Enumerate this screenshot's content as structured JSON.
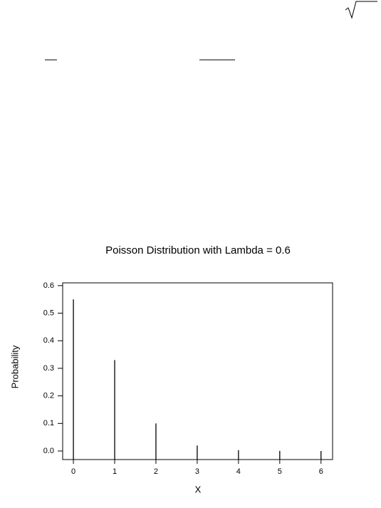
{
  "chart_data": {
    "type": "bar",
    "title": "Poisson Distribution with Lambda = 0.6",
    "x_label": "X",
    "y_label": "Probability",
    "x": [
      0,
      1,
      2,
      3,
      4,
      5,
      6
    ],
    "values": [
      0.55,
      0.33,
      0.1,
      0.02,
      0.003,
      0.0004,
      4e-05
    ],
    "color": "#000000",
    "xlim": [
      -0.26,
      6.28
    ],
    "xticks": [
      0,
      1,
      2,
      3,
      4,
      5,
      6
    ],
    "ylim": [
      -0.031,
      0.61
    ],
    "yticks": [
      {
        "value": 0,
        "label": "0.0"
      },
      0.1,
      0.2,
      0.3,
      0.4,
      0.5,
      0.6
    ],
    "grid": false
  }
}
